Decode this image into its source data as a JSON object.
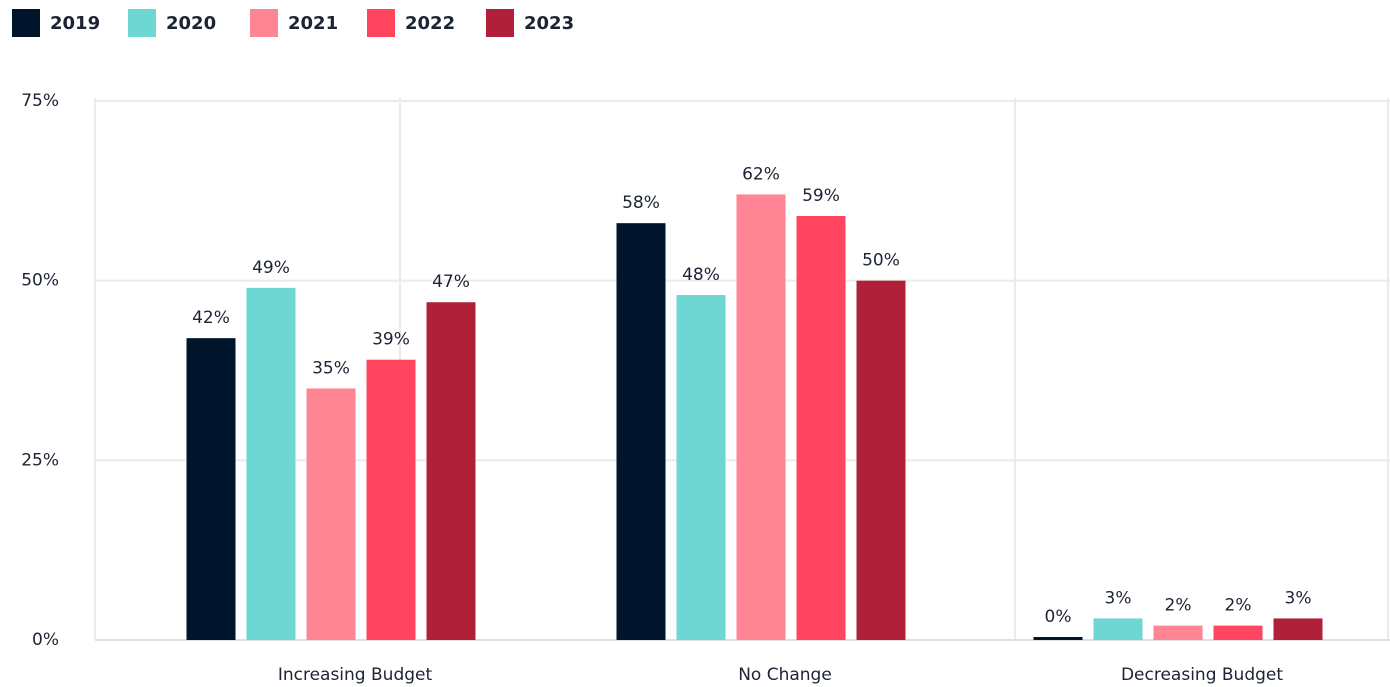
{
  "chart_data": {
    "type": "bar",
    "categories": [
      "Increasing Budget",
      "No Change",
      "Decreasing Budget"
    ],
    "series": [
      {
        "name": "2019",
        "color": "#00142b",
        "values": [
          42,
          58,
          0
        ],
        "value_labels": [
          "42%",
          "58%",
          "0%"
        ]
      },
      {
        "name": "2020",
        "color": "#6ed6d3",
        "values": [
          49,
          48,
          3
        ],
        "value_labels": [
          "49%",
          "48%",
          "3%"
        ]
      },
      {
        "name": "2021",
        "color": "#ff8595",
        "values": [
          35,
          62,
          2
        ],
        "value_labels": [
          "35%",
          "62%",
          "2%"
        ]
      },
      {
        "name": "2022",
        "color": "#ff4560",
        "values": [
          39,
          59,
          2
        ],
        "value_labels": [
          "39%",
          "59%",
          "2%"
        ]
      },
      {
        "name": "2023",
        "color": "#b02038",
        "values": [
          47,
          50,
          3
        ],
        "value_labels": [
          "47%",
          "50%",
          "3%"
        ]
      }
    ],
    "ylim": [
      0,
      75
    ],
    "yticks": [
      {
        "value": 0,
        "label": "0%"
      },
      {
        "value": 25,
        "label": "25%"
      },
      {
        "value": 50,
        "label": "50%"
      },
      {
        "value": 75,
        "label": "75%"
      }
    ],
    "grid": true,
    "legend": "top-left"
  }
}
